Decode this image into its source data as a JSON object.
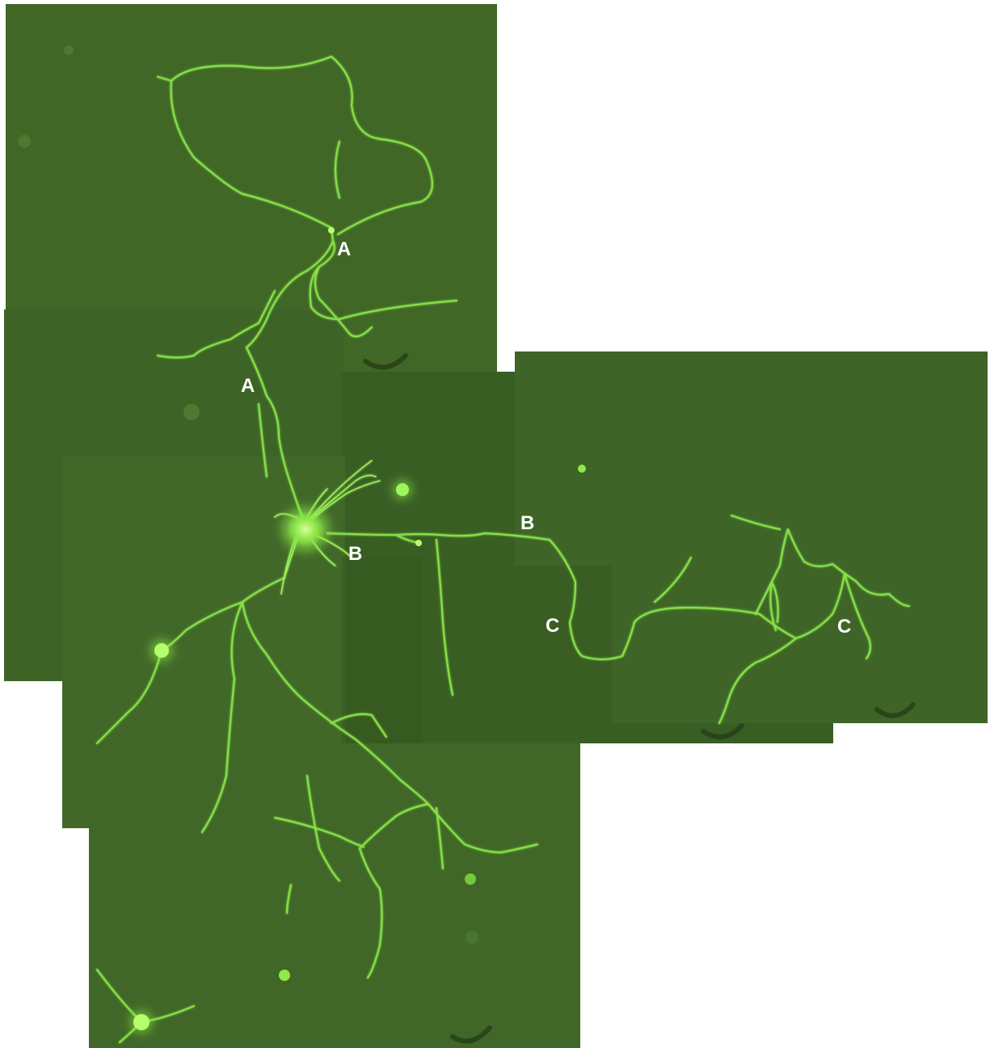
{
  "colors": {
    "background": "#ffffff",
    "tile": "#3f6527",
    "tile_dark": "#345a21",
    "neurite": "#8ee84a",
    "soma": "#b4ff6a",
    "label": "#ffffff"
  },
  "labels": {
    "a1": "A",
    "a2": "A",
    "b1": "B",
    "b2": "B",
    "c1": "C",
    "c2": "C"
  }
}
